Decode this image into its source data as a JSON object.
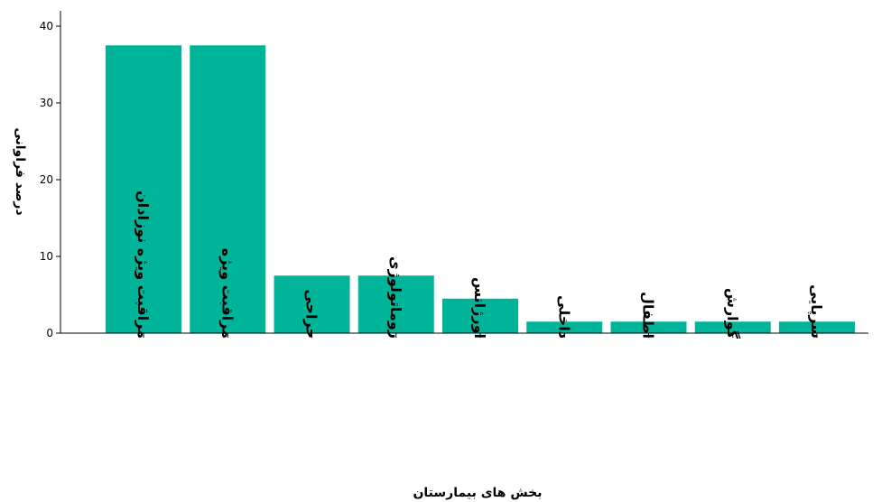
{
  "chart_data": {
    "type": "bar",
    "title": "",
    "xlabel": "بخش های بیمارستان",
    "ylabel": "درصد فراوانی",
    "categories": [
      "مراقبت ویژه نوزادان",
      "مراقبت ویژه",
      "جراحی",
      "روماتولوژی",
      "اورژانس",
      "داخلی",
      "اطفال",
      "گوارش",
      "سرپایی"
    ],
    "values": [
      37.5,
      37.5,
      7.5,
      7.5,
      4.5,
      1.5,
      1.5,
      1.5,
      1.5
    ],
    "ylim": [
      0,
      42
    ],
    "yticks": [
      0,
      10,
      20,
      30,
      40
    ],
    "bar_color": "#00B49A",
    "grid": false
  }
}
